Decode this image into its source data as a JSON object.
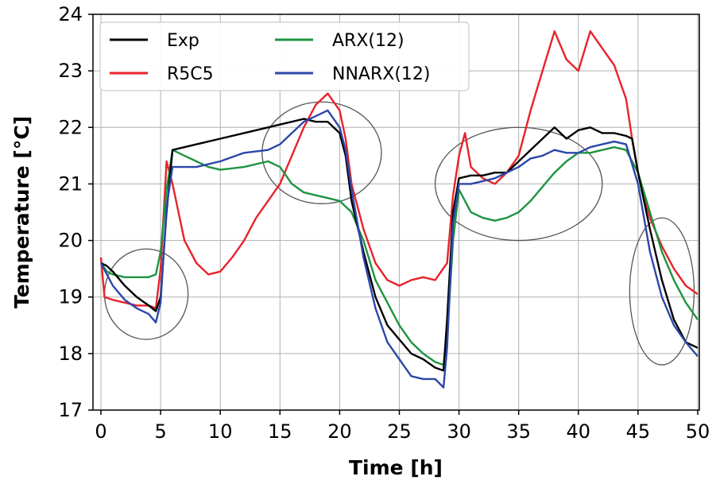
{
  "chart_data": {
    "type": "line",
    "xlabel": "Time [h]",
    "ylabel": "Temperature [°C]",
    "xlim": [
      0,
      50
    ],
    "ylim": [
      17,
      24
    ],
    "xticks": [
      "0",
      "5",
      "10",
      "15",
      "20",
      "25",
      "30",
      "35",
      "40",
      "45",
      "50"
    ],
    "yticks": [
      "17",
      "18",
      "19",
      "20",
      "21",
      "22",
      "23",
      "24"
    ],
    "grid": true,
    "legend_position": "top-left",
    "series": [
      {
        "name": "Exp",
        "color": "#000000",
        "x": [
          0,
          0.5,
          1,
          2,
          3,
          4,
          4.6,
          5,
          5.5,
          6,
          8,
          10,
          12,
          14,
          15,
          16,
          17,
          18,
          19,
          20,
          20.5,
          21,
          22,
          23,
          24,
          25,
          26,
          27,
          28,
          28.7,
          29,
          29.5,
          30,
          31,
          32,
          33,
          34,
          35,
          36,
          37,
          38,
          39,
          40,
          41,
          42,
          43,
          44,
          44.5,
          45,
          46,
          47,
          48,
          49,
          50
        ],
        "y": [
          19.6,
          19.55,
          19.45,
          19.2,
          19.0,
          18.85,
          18.75,
          19.0,
          20.5,
          21.6,
          21.7,
          21.8,
          21.9,
          22.0,
          22.05,
          22.1,
          22.15,
          22.1,
          22.1,
          21.9,
          21.5,
          20.7,
          19.8,
          19.0,
          18.5,
          18.25,
          18.0,
          17.9,
          17.75,
          17.7,
          18.6,
          20.5,
          21.1,
          21.15,
          21.15,
          21.2,
          21.2,
          21.4,
          21.6,
          21.8,
          22.0,
          21.8,
          21.95,
          22.0,
          21.9,
          21.9,
          21.85,
          21.8,
          21.2,
          20.2,
          19.3,
          18.6,
          18.2,
          18.1
        ]
      },
      {
        "name": "R5C5",
        "color": "#e8232a",
        "x": [
          0,
          0.3,
          1,
          2,
          3,
          4,
          4.6,
          5,
          5.5,
          6,
          7,
          8,
          9,
          10,
          11,
          12,
          13,
          14,
          15,
          16,
          17,
          18,
          19,
          20,
          20.5,
          21,
          22,
          23,
          24,
          25,
          26,
          27,
          28,
          29,
          29.5,
          30,
          30.5,
          31,
          32,
          33,
          34,
          35,
          36,
          37,
          38,
          39,
          40,
          41,
          42,
          43,
          44,
          44.5,
          45,
          46,
          47,
          48,
          49,
          50
        ],
        "y": [
          19.7,
          19.0,
          18.95,
          18.9,
          18.85,
          18.85,
          18.8,
          19.5,
          21.4,
          21.0,
          20.0,
          19.6,
          19.4,
          19.45,
          19.7,
          20.0,
          20.4,
          20.7,
          21.0,
          21.5,
          22.0,
          22.4,
          22.6,
          22.3,
          21.8,
          21.0,
          20.2,
          19.6,
          19.3,
          19.2,
          19.3,
          19.35,
          19.3,
          19.6,
          20.8,
          21.5,
          21.9,
          21.3,
          21.1,
          21.0,
          21.2,
          21.5,
          22.3,
          23.0,
          23.7,
          23.2,
          23.0,
          23.7,
          23.4,
          23.1,
          22.5,
          21.8,
          21.2,
          20.4,
          19.9,
          19.5,
          19.2,
          19.05
        ]
      },
      {
        "name": "ARX(12)",
        "color": "#1e9440",
        "x": [
          0,
          0.5,
          1,
          2,
          3,
          4,
          4.6,
          5,
          5.5,
          6,
          7,
          8,
          9,
          10,
          12,
          14,
          15,
          16,
          17,
          18,
          19,
          20,
          21,
          22,
          23,
          24,
          25,
          26,
          27,
          28,
          28.7,
          29,
          29.5,
          30,
          31,
          32,
          33,
          34,
          35,
          36,
          37,
          38,
          39,
          40,
          41,
          42,
          43,
          44,
          45,
          46,
          47,
          48,
          49,
          50
        ],
        "y": [
          19.6,
          19.45,
          19.4,
          19.35,
          19.35,
          19.35,
          19.4,
          19.8,
          20.9,
          21.6,
          21.5,
          21.4,
          21.3,
          21.25,
          21.3,
          21.4,
          21.3,
          21.0,
          20.85,
          20.8,
          20.75,
          20.7,
          20.5,
          20.0,
          19.3,
          18.9,
          18.5,
          18.2,
          18.0,
          17.85,
          17.8,
          18.3,
          20.0,
          20.9,
          20.5,
          20.4,
          20.35,
          20.4,
          20.5,
          20.7,
          20.95,
          21.2,
          21.4,
          21.55,
          21.55,
          21.6,
          21.65,
          21.6,
          21.2,
          20.5,
          19.8,
          19.3,
          18.9,
          18.6
        ]
      },
      {
        "name": "NNARX(12)",
        "color": "#2c47a8",
        "x": [
          0,
          0.5,
          1,
          2,
          3,
          4,
          4.6,
          5,
          5.5,
          6,
          7,
          8,
          10,
          12,
          14,
          15,
          16,
          17,
          18,
          19,
          20,
          20.5,
          21,
          22,
          23,
          24,
          25,
          26,
          27,
          28,
          28.7,
          29,
          29.5,
          30,
          31,
          32,
          33,
          34,
          35,
          36,
          37,
          38,
          39,
          40,
          41,
          42,
          43,
          44,
          45,
          46,
          47,
          48,
          49,
          50
        ],
        "y": [
          19.6,
          19.4,
          19.2,
          18.95,
          18.8,
          18.7,
          18.55,
          18.9,
          20.6,
          21.3,
          21.3,
          21.3,
          21.4,
          21.55,
          21.6,
          21.7,
          21.9,
          22.1,
          22.2,
          22.3,
          22.0,
          21.6,
          20.9,
          19.7,
          18.8,
          18.2,
          17.9,
          17.6,
          17.55,
          17.55,
          17.4,
          18.1,
          20.3,
          21.0,
          21.0,
          21.05,
          21.1,
          21.2,
          21.3,
          21.45,
          21.5,
          21.6,
          21.55,
          21.55,
          21.65,
          21.7,
          21.75,
          21.7,
          21.0,
          19.8,
          19.0,
          18.5,
          18.2,
          17.95
        ]
      }
    ],
    "annotations": [
      {
        "shape": "ellipse",
        "cx": 3.8,
        "cy": 19.05,
        "rx": 3.5,
        "ry": 0.8
      },
      {
        "shape": "ellipse",
        "cx": 18.5,
        "cy": 21.55,
        "rx": 5.0,
        "ry": 0.9
      },
      {
        "shape": "ellipse",
        "cx": 35.0,
        "cy": 21.0,
        "rx": 7.0,
        "ry": 1.0
      },
      {
        "shape": "ellipse",
        "cx": 47.0,
        "cy": 19.1,
        "rx": 2.7,
        "ry": 1.3
      }
    ]
  }
}
